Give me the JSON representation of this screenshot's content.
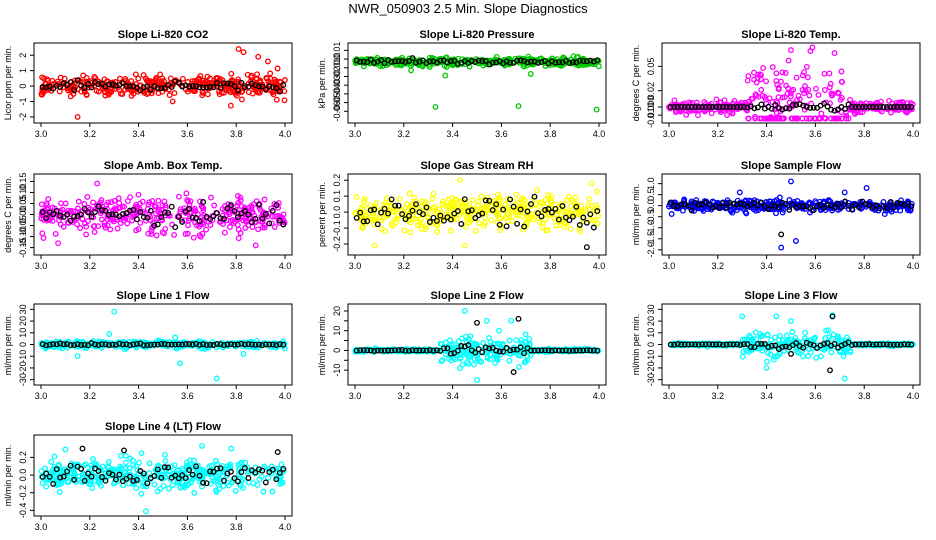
{
  "title": "NWR_050903  2.5 Min. Slope Diagnostics",
  "colors": {
    "red": "#ff0000",
    "green": "#00c800",
    "magenta": "#ff00ff",
    "yellow": "#ffff00",
    "blue": "#0000ff",
    "cyan": "#00ffff",
    "reference": "#000000"
  },
  "chart_data": [
    {
      "type": "scatter",
      "title": "Slope Li-820 CO2",
      "ylabel": "Licor ppm per min.",
      "xlim": [
        3.0,
        4.0
      ],
      "ylim": [
        -2.2,
        2.6
      ],
      "xticks": [
        "3.0",
        "3.2",
        "3.4",
        "3.6",
        "3.8",
        "4.0"
      ],
      "yticks": [
        -2,
        -1,
        0,
        1,
        2
      ],
      "ytick_labels": [
        "-2",
        "-1",
        "0",
        "1",
        "2"
      ],
      "color": "red",
      "series": [
        {
          "name": "slope",
          "spread": 0.55,
          "profile": "noisy_late",
          "outliers": [
            [
              3.15,
              -2.0
            ],
            [
              3.81,
              2.4
            ],
            [
              3.83,
              2.2
            ],
            [
              3.89,
              1.9
            ],
            [
              3.93,
              1.6
            ]
          ]
        },
        {
          "name": "reference",
          "color": "reference",
          "spread": 0.25
        }
      ]
    },
    {
      "type": "scatter",
      "title": "Slope Li-820 Pressure",
      "ylabel": "kPa per min.",
      "xlim": [
        3.0,
        4.0
      ],
      "ylim": [
        -0.07,
        0.015
      ],
      "xticks": [
        "3.0",
        "3.2",
        "3.4",
        "3.6",
        "3.8",
        "4.0"
      ],
      "yticks": [
        0.01,
        0.0,
        -0.01,
        -0.02,
        -0.03,
        -0.04,
        -0.05,
        -0.06
      ],
      "ytick_labels": [
        "0.01",
        "0.0",
        "-0.01",
        "-0.02",
        "-0.03",
        "-0.04",
        "-0.05",
        "-0.06"
      ],
      "color": "green",
      "series": [
        {
          "name": "slope",
          "spread": 0.004,
          "center": -0.003,
          "outliers": [
            [
              3.33,
              -0.055
            ],
            [
              3.67,
              -0.054
            ],
            [
              3.99,
              -0.058
            ],
            [
              3.23,
              -0.013
            ],
            [
              3.72,
              -0.017
            ],
            [
              3.37,
              -0.019
            ]
          ]
        },
        {
          "name": "reference",
          "color": "reference",
          "spread": 0.002,
          "center": -0.003
        }
      ]
    },
    {
      "type": "scatter",
      "title": "Slope Li-820 Temp.",
      "ylabel": "degrees C per min.",
      "xlim": [
        3.0,
        4.0
      ],
      "ylim": [
        -0.016,
        0.075
      ],
      "xticks": [
        "3.0",
        "3.2",
        "3.4",
        "3.6",
        "3.8",
        "4.0"
      ],
      "yticks": [
        -0.01,
        0.0,
        0.02,
        0.05
      ],
      "ytick_labels": [
        "-0.010",
        "0.000",
        "0.02",
        "0.05"
      ],
      "color": "magenta",
      "series": [
        {
          "name": "slope",
          "spread": 0.018,
          "profile": "burst_mid",
          "burst_range": [
            3.32,
            3.74
          ],
          "outliers": [
            [
              3.5,
              0.07
            ],
            [
              3.38,
              -0.014
            ],
            [
              3.45,
              -0.013
            ]
          ]
        },
        {
          "name": "reference",
          "color": "reference",
          "spread": 0.0,
          "profile": "burst_mid",
          "burst_range": [
            3.32,
            3.74
          ]
        }
      ]
    },
    {
      "type": "scatter",
      "title": "Slope Amb. Box Temp.",
      "ylabel": "degrees C per min.",
      "xlim": [
        3.0,
        4.0
      ],
      "ylim": [
        -0.17,
        0.17
      ],
      "xticks": [
        "3.0",
        "3.2",
        "3.4",
        "3.6",
        "3.8",
        "4.0"
      ],
      "yticks": [
        -0.15,
        -0.1,
        -0.05,
        0.0,
        0.05,
        0.1,
        0.15
      ],
      "ytick_labels": [
        "-0.15",
        "-0.10",
        "-0.05",
        "0.00",
        "0.05",
        "0.10",
        "0.15"
      ],
      "color": "magenta",
      "series": [
        {
          "name": "slope",
          "spread": 0.07,
          "outliers": [
            [
              3.23,
              0.14
            ],
            [
              3.07,
              -0.13
            ],
            [
              3.88,
              -0.14
            ]
          ]
        },
        {
          "name": "reference",
          "color": "reference",
          "spread": 0.04
        }
      ]
    },
    {
      "type": "scatter",
      "title": "Slope Gas Stream RH",
      "ylabel": "percent per min.",
      "xlim": [
        3.0,
        4.0
      ],
      "ylim": [
        -0.25,
        0.22
      ],
      "xticks": [
        "3.0",
        "3.2",
        "3.4",
        "3.6",
        "3.8",
        "4.0"
      ],
      "yticks": [
        -0.2,
        -0.1,
        0.0,
        0.1,
        0.2
      ],
      "ytick_labels": [
        "-0.2",
        "-0.1",
        "0.0",
        "0.1",
        "0.2"
      ],
      "color": "yellow",
      "series": [
        {
          "name": "slope",
          "spread": 0.09,
          "outliers": [
            [
              3.43,
              0.2
            ],
            [
              3.97,
              0.18
            ],
            [
              3.08,
              -0.21
            ],
            [
              3.45,
              -0.21
            ]
          ]
        },
        {
          "name": "reference",
          "color": "reference",
          "spread": 0.08,
          "outliers": [
            [
              3.95,
              -0.22
            ]
          ]
        }
      ]
    },
    {
      "type": "scatter",
      "title": "Slope Sample Flow",
      "ylabel": "ml/min per min.",
      "xlim": [
        3.0,
        4.0
      ],
      "ylim": [
        -2.1,
        1.3
      ],
      "xticks": [
        "3.0",
        "3.2",
        "3.4",
        "3.6",
        "3.8",
        "4.0"
      ],
      "yticks": [
        1.0,
        0.5,
        0.0,
        -0.5,
        -1.0,
        -1.5,
        -2.0
      ],
      "ytick_labels": [
        "1.0",
        "0.5",
        "0.0",
        "-0.5",
        "-1.0",
        "-1.5",
        "-2.0"
      ],
      "color": "blue",
      "series": [
        {
          "name": "slope",
          "spread": 0.22,
          "outliers": [
            [
              3.5,
              1.1
            ],
            [
              3.46,
              -1.9
            ],
            [
              3.52,
              -1.6
            ],
            [
              3.29,
              0.6
            ],
            [
              3.72,
              0.6
            ],
            [
              3.81,
              0.8
            ]
          ]
        },
        {
          "name": "reference",
          "color": "reference",
          "spread": 0.15,
          "outliers": [
            [
              3.46,
              -1.3
            ]
          ]
        }
      ]
    },
    {
      "type": "scatter",
      "title": "Slope Line 1 Flow",
      "ylabel": "ml/min per min.",
      "xlim": [
        3.0,
        4.0
      ],
      "ylim": [
        -32,
        32
      ],
      "xticks": [
        "3.0",
        "3.2",
        "3.4",
        "3.6",
        "3.8",
        "4.0"
      ],
      "yticks": [
        -30,
        -20,
        -10,
        0,
        10,
        20,
        30
      ],
      "ytick_labels": [
        "-30",
        "-20",
        "-10",
        "0",
        "10",
        "20",
        "30"
      ],
      "color": "cyan",
      "series": [
        {
          "name": "slope",
          "spread": 2.5,
          "outliers": [
            [
              3.3,
              28
            ],
            [
              3.72,
              -29
            ],
            [
              3.57,
              -16
            ],
            [
              3.15,
              -10
            ],
            [
              3.83,
              -8
            ],
            [
              3.28,
              9
            ],
            [
              3.55,
              6
            ]
          ]
        },
        {
          "name": "reference",
          "color": "reference",
          "spread": 0.8
        }
      ]
    },
    {
      "type": "scatter",
      "title": "Slope Line 2 Flow",
      "ylabel": "ml/min per min.",
      "xlim": [
        3.0,
        4.0
      ],
      "ylim": [
        -16,
        22
      ],
      "xticks": [
        "3.0",
        "3.2",
        "3.4",
        "3.6",
        "3.8",
        "4.0"
      ],
      "yticks": [
        -10,
        -5,
        0,
        5,
        10,
        15,
        20
      ],
      "ytick_labels": [
        "-10",
        "",
        "0",
        "",
        "10",
        "",
        "20"
      ],
      "color": "cyan",
      "series": [
        {
          "name": "slope",
          "spread": 1.8,
          "profile": "burst_mid",
          "burst_range": [
            3.35,
            3.72
          ],
          "outliers": [
            [
              3.45,
              20
            ],
            [
              3.5,
              -15
            ],
            [
              3.54,
              15
            ],
            [
              3.64,
              15
            ],
            [
              3.59,
              10
            ],
            [
              3.43,
              -9
            ]
          ]
        },
        {
          "name": "reference",
          "color": "reference",
          "spread": 0.6,
          "profile": "burst_mid",
          "burst_range": [
            3.35,
            3.72
          ],
          "outliers": [
            [
              3.5,
              14
            ],
            [
              3.67,
              16
            ],
            [
              3.65,
              -11
            ]
          ]
        }
      ]
    },
    {
      "type": "scatter",
      "title": "Slope Line 3 Flow",
      "ylabel": "ml/min per min.",
      "xlim": [
        3.0,
        4.0
      ],
      "ylim": [
        -32,
        32
      ],
      "xticks": [
        "3.0",
        "3.2",
        "3.4",
        "3.6",
        "3.8",
        "4.0"
      ],
      "yticks": [
        -30,
        -20,
        -10,
        0,
        10,
        20,
        30
      ],
      "ytick_labels": [
        "-30",
        "-20",
        "-10",
        "0",
        "10",
        "20",
        "30"
      ],
      "color": "cyan",
      "series": [
        {
          "name": "slope",
          "spread": 3.0,
          "profile": "burst_mid",
          "burst_range": [
            3.3,
            3.75
          ],
          "outliers": [
            [
              3.3,
              24
            ],
            [
              3.44,
              24
            ],
            [
              3.5,
              20
            ],
            [
              3.72,
              -29
            ],
            [
              3.4,
              -20
            ],
            [
              3.67,
              25
            ]
          ]
        },
        {
          "name": "reference",
          "color": "reference",
          "spread": 0.8,
          "profile": "burst_mid",
          "burst_range": [
            3.3,
            3.75
          ],
          "outliers": [
            [
              3.67,
              24
            ],
            [
              3.66,
              -22
            ],
            [
              3.5,
              -8
            ]
          ]
        }
      ]
    },
    {
      "type": "scatter",
      "title": "Slope Line 4 (LT) Flow",
      "ylabel": "ml/min per min.",
      "xlim": [
        3.0,
        4.0
      ],
      "ylim": [
        -0.43,
        0.42
      ],
      "xticks": [
        "3.0",
        "3.2",
        "3.4",
        "3.6",
        "3.8",
        "4.0"
      ],
      "yticks": [
        -0.4,
        -0.2,
        0.0,
        0.2
      ],
      "ytick_labels": [
        "-0.4",
        "-0.2",
        "0.0",
        "0.2"
      ],
      "color": "cyan",
      "series": [
        {
          "name": "slope",
          "spread": 0.14,
          "outliers": [
            [
              3.43,
              -0.41
            ],
            [
              3.1,
              0.29
            ],
            [
              3.66,
              0.33
            ],
            [
              3.78,
              0.3
            ]
          ]
        },
        {
          "name": "reference",
          "color": "reference",
          "spread": 0.1,
          "outliers": [
            [
              3.17,
              0.3
            ],
            [
              3.34,
              0.28
            ],
            [
              3.97,
              0.26
            ]
          ]
        }
      ]
    }
  ]
}
